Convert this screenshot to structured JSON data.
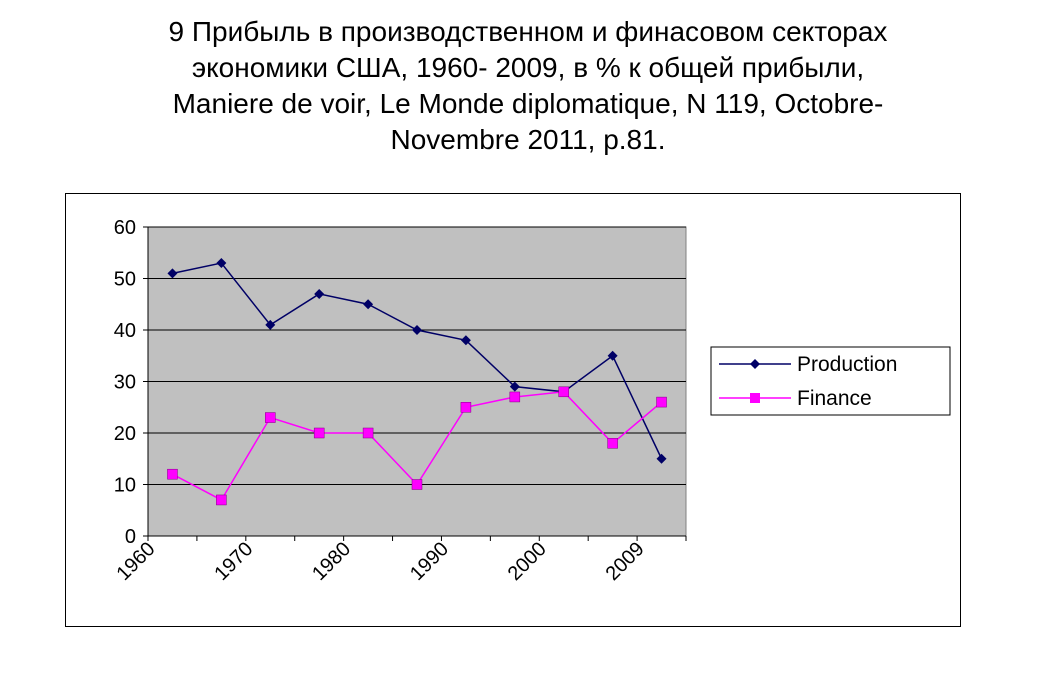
{
  "title_lines": [
    "9 Прибыль в производственном и финасовом секторах",
    "экономики США, 1960- 2009, в % к общей прибыли,",
    "Maniere de voir, Le Monde diplomatique, N 119, Octobre-",
    "Novembre 2011, p.81."
  ],
  "chart_data": {
    "type": "line",
    "title": "",
    "xlabel": "",
    "ylabel": "",
    "ylim": [
      0,
      60
    ],
    "y_ticks": [
      0,
      10,
      20,
      30,
      40,
      50,
      60
    ],
    "x_tick_labels": [
      "1960",
      "1970",
      "1980",
      "1990",
      "2000",
      "2009"
    ],
    "grid": "horizontal",
    "legend": "right",
    "plot_background": "#c0c0c0",
    "series": [
      {
        "name": "Production",
        "color": "#000066",
        "marker": "diamond",
        "values": [
          51,
          53,
          41,
          47,
          45,
          40,
          38,
          29,
          28,
          35,
          15
        ]
      },
      {
        "name": "Finance",
        "color": "#ff00ff",
        "marker": "square",
        "values": [
          12,
          7,
          23,
          20,
          20,
          10,
          25,
          27,
          28,
          18,
          26
        ]
      }
    ]
  }
}
